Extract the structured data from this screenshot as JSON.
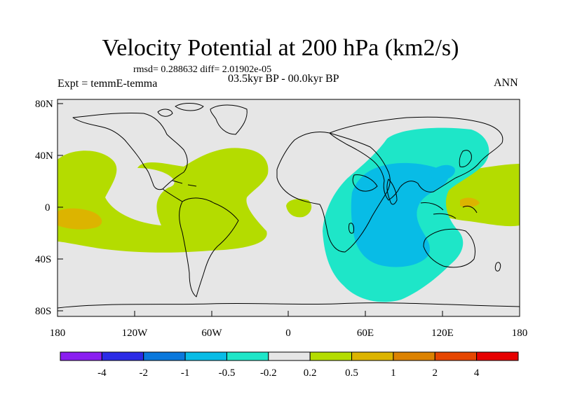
{
  "title": "Velocity Potential at 200 hPa (km2/s)",
  "stats": "rmsd= 0.288632 diff= 2.01902e-05",
  "left_label": "Expt = temmE-temma",
  "center_label": "03.5kyr BP - 00.0kyr BP",
  "right_label": "ANN",
  "map": {
    "lat_ticks": [
      "80N",
      "40N",
      "0",
      "40S",
      "80S"
    ],
    "lon_ticks": [
      "180",
      "120W",
      "60W",
      "0",
      "60E",
      "120E",
      "180"
    ]
  },
  "colorbar": {
    "labels": [
      "-4",
      "-2",
      "-1",
      "-0.5",
      "-0.2",
      "0.2",
      "0.5",
      "1",
      "2",
      "4"
    ],
    "colors": [
      "#8a1ef0",
      "#2b2be6",
      "#0a78dc",
      "#08bce6",
      "#1ee6c8",
      "#e6e6e6",
      "#b4dc00",
      "#dcb400",
      "#dc8200",
      "#e64600",
      "#e60000"
    ]
  }
}
